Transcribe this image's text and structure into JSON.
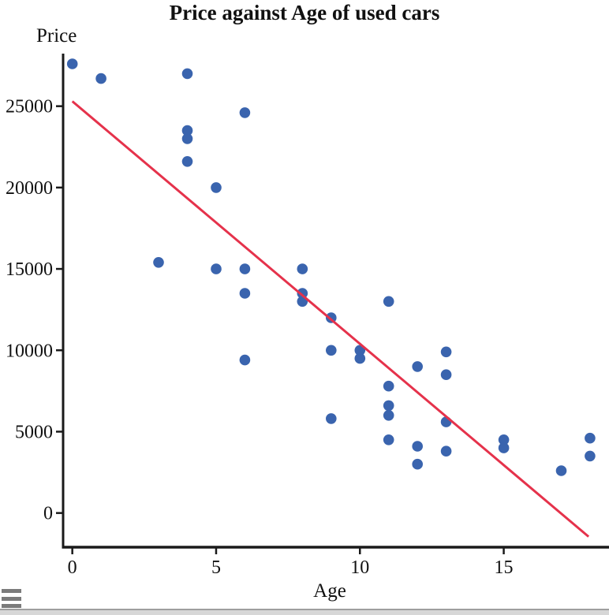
{
  "colors": {
    "point": "#3A64AE",
    "trend_line": "#E5324B",
    "axis": "#1a1a1a",
    "menu_icon": "#7b7b7b",
    "bottom_bar": "#d7d7d7"
  },
  "menu_icon_name": "hamburger-menu",
  "chart_data": {
    "type": "scatter",
    "title": "Price against Age of used cars",
    "xlabel": "Age",
    "ylabel": "Price",
    "x_ticks": [
      0,
      5,
      10,
      15
    ],
    "y_ticks": [
      0,
      5000,
      10000,
      15000,
      20000,
      25000
    ],
    "xlim": [
      -0.32,
      18.66
    ],
    "ylim": [
      -2100,
      28230
    ],
    "grid": false,
    "legend": null,
    "points": [
      [
        0,
        27600
      ],
      [
        1,
        26700
      ],
      [
        3,
        15400
      ],
      [
        4,
        27000
      ],
      [
        4,
        23500
      ],
      [
        4,
        23000
      ],
      [
        4,
        21600
      ],
      [
        5,
        20000
      ],
      [
        5,
        15000
      ],
      [
        6,
        24600
      ],
      [
        6,
        15000
      ],
      [
        6,
        13500
      ],
      [
        6,
        9400
      ],
      [
        8,
        15000
      ],
      [
        8,
        13500
      ],
      [
        8,
        13000
      ],
      [
        9,
        12000
      ],
      [
        9,
        10000
      ],
      [
        9,
        5800
      ],
      [
        10,
        10000
      ],
      [
        10,
        9500
      ],
      [
        11,
        13000
      ],
      [
        11,
        7800
      ],
      [
        11,
        6600
      ],
      [
        11,
        6000
      ],
      [
        11,
        4500
      ],
      [
        12,
        9000
      ],
      [
        12,
        4100
      ],
      [
        12,
        3000
      ],
      [
        13,
        9900
      ],
      [
        13,
        8500
      ],
      [
        13,
        5600
      ],
      [
        13,
        3800
      ],
      [
        15,
        4500
      ],
      [
        15,
        4000
      ],
      [
        17,
        2600
      ],
      [
        18,
        4600
      ],
      [
        18,
        3500
      ]
    ],
    "trend_line": {
      "x1": 0,
      "y1": 25300,
      "x2": 17.95,
      "y2": -1450
    }
  }
}
